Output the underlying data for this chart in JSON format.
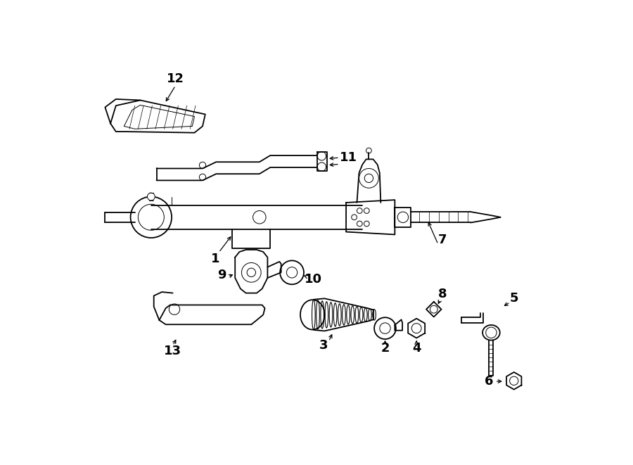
{
  "bg_color": "#ffffff",
  "line_color": "#000000",
  "lw": 1.3,
  "lw_thin": 0.7,
  "figsize": [
    9.0,
    6.61
  ],
  "dpi": 100
}
